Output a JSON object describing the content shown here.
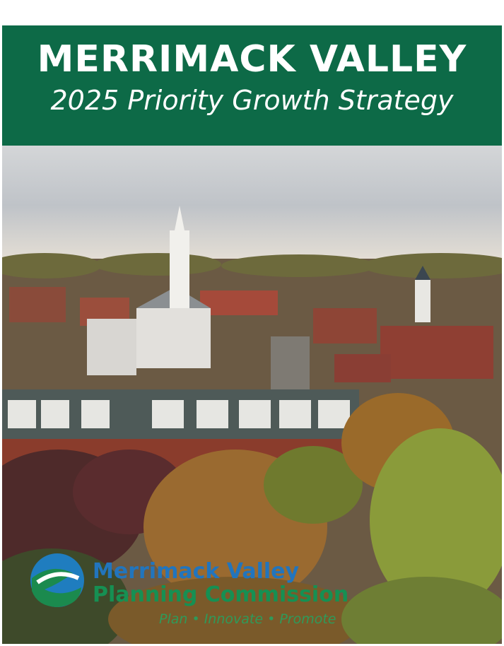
{
  "header": {
    "title": "MERRIMACK VALLEY",
    "subtitle": "2025 Priority Growth Strategy"
  },
  "logo": {
    "line1": "Merrimack Valley",
    "line2": "Planning Commission",
    "tagline": "Plan • Innovate • Promote"
  }
}
